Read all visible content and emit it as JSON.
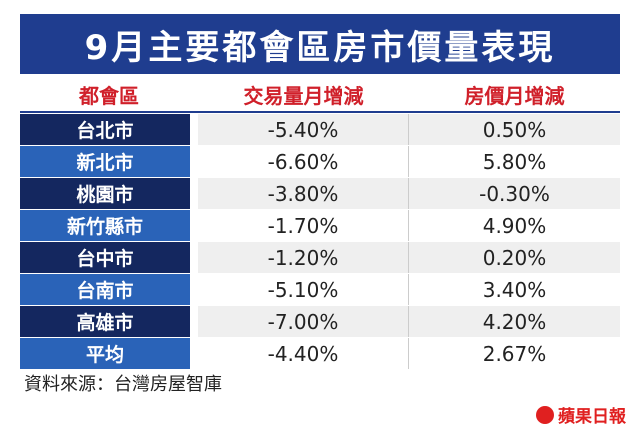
{
  "chart_data": {
    "type": "table",
    "title": "9月主要都會區房市價量表現",
    "columns": [
      "都會區",
      "交易量月增減",
      "房價月增減"
    ],
    "rows": [
      {
        "city": "台北市",
        "volume": "-5.40%",
        "price": "0.50%"
      },
      {
        "city": "新北市",
        "volume": "-6.60%",
        "price": "5.80%"
      },
      {
        "city": "桃園市",
        "volume": "-3.80%",
        "price": "-0.30%"
      },
      {
        "city": "新竹縣市",
        "volume": "-1.70%",
        "price": "4.90%"
      },
      {
        "city": "台中市",
        "volume": "-1.20%",
        "price": "0.20%"
      },
      {
        "city": "台南市",
        "volume": "-5.10%",
        "price": "3.40%"
      },
      {
        "city": "高雄市",
        "volume": "-7.00%",
        "price": "4.20%"
      },
      {
        "city": "平均",
        "volume": "-4.40%",
        "price": "2.67%"
      }
    ],
    "colors": {
      "title_bg": "#1f3d8f",
      "header_text": "#d0202a",
      "city_dark": "#14275f",
      "city_light": "#2a63b8"
    }
  },
  "source": "資料來源：台灣房屋智庫",
  "logo": {
    "text": "蘋果日報",
    "icon": "apple-logo-icon"
  }
}
